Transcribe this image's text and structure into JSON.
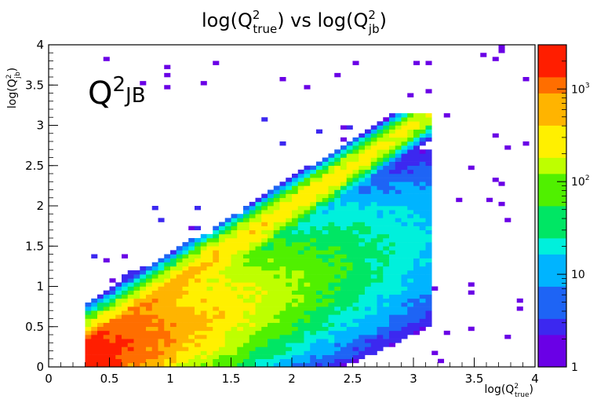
{
  "chart_data": {
    "type": "heatmap",
    "title": {
      "pre": "log(Q",
      "sup1": "2",
      "sub1": "true",
      "mid": ") vs  log(Q",
      "sup2": "2",
      "sub2": "jb",
      "post": ")"
    },
    "xlabel": {
      "pre": "log(Q",
      "sup": "2",
      "sub": "true",
      "post": ")"
    },
    "ylabel": {
      "pre": "log(Q",
      "sup": "2",
      "sub": "jb",
      "post": ")"
    },
    "annotation": {
      "base": "Q",
      "sup": "2",
      "sub": "JB"
    },
    "xlim": [
      0,
      4
    ],
    "ylim": [
      0,
      4
    ],
    "x_ticks": [
      "0",
      "0.5",
      "1",
      "1.5",
      "2",
      "2.5",
      "3",
      "3.5",
      "4"
    ],
    "y_ticks": [
      "0",
      "0.5",
      "1",
      "1.5",
      "2",
      "2.5",
      "3",
      "3.5",
      "4"
    ],
    "z_scale": "log",
    "z_range": [
      1,
      3000
    ],
    "z_ticks": [
      "1",
      "10",
      "10",
      "10"
    ],
    "z_tick_exponents": [
      "",
      "",
      "2",
      "3"
    ],
    "z_tick_values": [
      1,
      10,
      100,
      1000
    ],
    "bin_width": 0.05,
    "grid": false,
    "colormap": [
      "#6a00e6",
      "#3c28f0",
      "#1e64f5",
      "#00b4ff",
      "#00f0dc",
      "#00e664",
      "#50f000",
      "#beff00",
      "#fff000",
      "#ffb400",
      "#ff6e00",
      "#ff1e00"
    ],
    "features": {
      "x_min": 0.3,
      "diagonal_peak_counts": 500,
      "low_q_peak_counts": 3000,
      "max_observed": 3.15
    }
  }
}
